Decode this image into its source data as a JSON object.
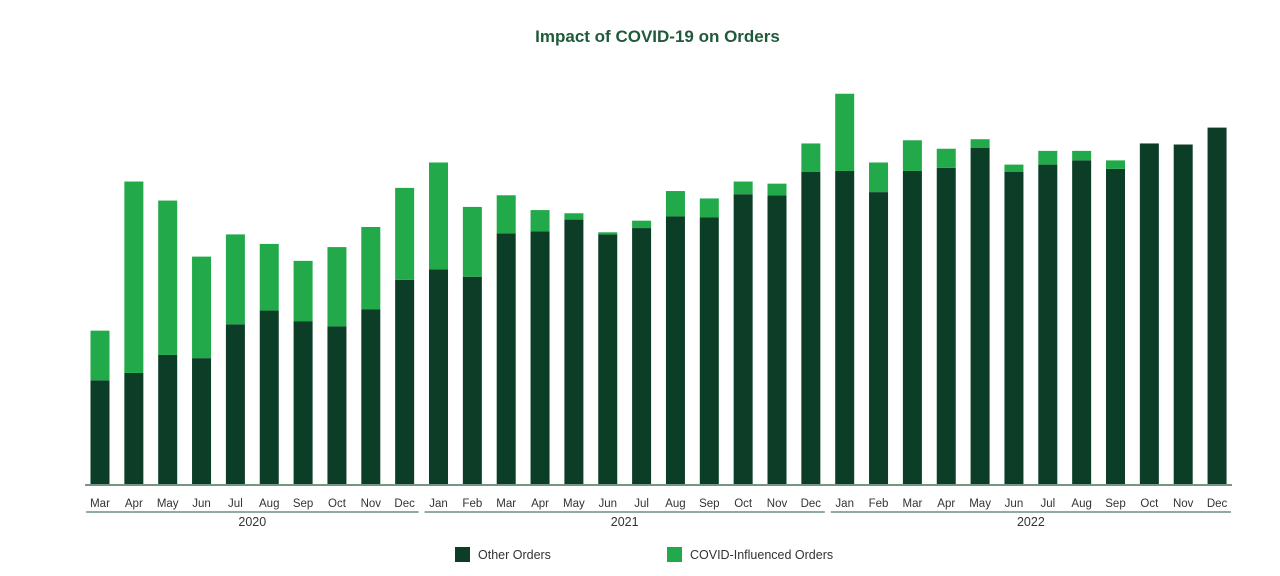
{
  "chart_data": {
    "type": "bar",
    "stacked": true,
    "title": "Impact of COVID-19 on Orders",
    "xlabel": "",
    "ylabel": "",
    "categories": [
      "Mar",
      "Apr",
      "May",
      "Jun",
      "Jul",
      "Aug",
      "Sep",
      "Oct",
      "Nov",
      "Dec",
      "Jan",
      "Feb",
      "Mar",
      "Apr",
      "May",
      "Jun",
      "Jul",
      "Aug",
      "Sep",
      "Oct",
      "Nov",
      "Dec",
      "Jan",
      "Feb",
      "Mar",
      "Apr",
      "May",
      "Jun",
      "Jul",
      "Aug",
      "Sep",
      "Oct",
      "Nov",
      "Dec"
    ],
    "year_groups": [
      {
        "label": "2020",
        "start": 0,
        "end": 9
      },
      {
        "label": "2021",
        "start": 10,
        "end": 21
      },
      {
        "label": "2022",
        "start": 22,
        "end": 33
      }
    ],
    "series": [
      {
        "name": "Other Orders",
        "color": "#0b3d27",
        "values": [
          98,
          105,
          122,
          119,
          151,
          164,
          154,
          149,
          165,
          193,
          203,
          196,
          237,
          239,
          250,
          236,
          242,
          253,
          252,
          274,
          273,
          295,
          296,
          276,
          296,
          299,
          318,
          295,
          302,
          306,
          298,
          322,
          321,
          337
        ]
      },
      {
        "name": "COVID-Influenced Orders",
        "color": "#22a94a",
        "values": [
          47,
          181,
          146,
          96,
          85,
          63,
          57,
          75,
          78,
          87,
          101,
          66,
          36,
          20,
          6,
          2,
          7,
          24,
          18,
          12,
          11,
          27,
          73,
          28,
          29,
          18,
          8,
          7,
          13,
          9,
          8,
          0,
          0,
          0
        ]
      }
    ],
    "ylim": [
      0,
      382
    ],
    "grid": false,
    "legend_position": "bottom"
  }
}
